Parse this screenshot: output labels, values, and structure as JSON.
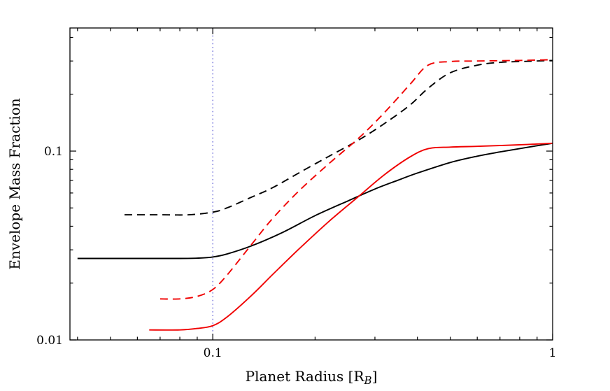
{
  "figure": {
    "background": "#ffffff"
  },
  "chart_data": {
    "type": "line",
    "xlabel": "Planet Radius [R_B]",
    "xlabel_parts": {
      "main": "Planet Radius [R",
      "sub": "B",
      "end": "]"
    },
    "ylabel": "Envelope Mass Fraction",
    "x_scale": "log",
    "y_scale": "log",
    "xlim": [
      0.038,
      1.0
    ],
    "ylim": [
      0.01,
      0.4487
    ],
    "grid": false,
    "legend": "none",
    "x_major_ticks": [
      {
        "value": 0.1,
        "label": "0.1"
      },
      {
        "value": 1.0,
        "label": "1"
      }
    ],
    "y_major_ticks": [
      {
        "value": 0.01,
        "label": "0.01"
      },
      {
        "value": 0.1,
        "label": "0.1"
      }
    ],
    "reference_line": {
      "axis": "x",
      "value": 0.1,
      "style": "dotted",
      "color": "#5b5bd6"
    },
    "colors": {
      "black": "#000000",
      "red": "#f00000"
    },
    "series": [
      {
        "name": "black-solid",
        "color": "#000000",
        "style": "solid",
        "x": [
          0.04,
          0.05,
          0.065,
          0.08,
          0.09,
          0.1,
          0.11,
          0.13,
          0.16,
          0.2,
          0.25,
          0.3,
          0.35,
          0.4,
          0.5,
          0.6,
          0.7,
          0.85,
          1.0
        ],
        "y": [
          0.027,
          0.027,
          0.027,
          0.027,
          0.0271,
          0.0275,
          0.0285,
          0.0315,
          0.037,
          0.0455,
          0.0545,
          0.063,
          0.07,
          0.0765,
          0.087,
          0.094,
          0.099,
          0.105,
          0.11
        ]
      },
      {
        "name": "black-dashed",
        "color": "#000000",
        "style": "dashed",
        "x": [
          0.055,
          0.07,
          0.085,
          0.1,
          0.11,
          0.13,
          0.15,
          0.18,
          0.22,
          0.27,
          0.32,
          0.38,
          0.43,
          0.5,
          0.6,
          0.7,
          0.85,
          1.0
        ],
        "y": [
          0.046,
          0.046,
          0.046,
          0.0475,
          0.05,
          0.057,
          0.064,
          0.077,
          0.094,
          0.115,
          0.14,
          0.175,
          0.215,
          0.26,
          0.285,
          0.295,
          0.299,
          0.302
        ]
      },
      {
        "name": "red-solid",
        "color": "#f00000",
        "style": "solid",
        "x": [
          0.065,
          0.08,
          0.09,
          0.1,
          0.11,
          0.13,
          0.15,
          0.18,
          0.22,
          0.27,
          0.32,
          0.38,
          0.43,
          0.5,
          0.6,
          0.8,
          1.0
        ],
        "y": [
          0.0113,
          0.0113,
          0.0115,
          0.0119,
          0.0132,
          0.0172,
          0.0222,
          0.0305,
          0.0425,
          0.058,
          0.075,
          0.093,
          0.103,
          0.105,
          0.106,
          0.108,
          0.11
        ]
      },
      {
        "name": "red-dashed",
        "color": "#f00000",
        "style": "dashed",
        "x": [
          0.07,
          0.08,
          0.09,
          0.1,
          0.11,
          0.13,
          0.15,
          0.18,
          0.22,
          0.27,
          0.32,
          0.38,
          0.43,
          0.5,
          0.6,
          0.8,
          1.0
        ],
        "y": [
          0.0165,
          0.0165,
          0.017,
          0.0185,
          0.022,
          0.032,
          0.044,
          0.062,
          0.086,
          0.118,
          0.16,
          0.225,
          0.285,
          0.298,
          0.3,
          0.302,
          0.305
        ]
      }
    ]
  }
}
